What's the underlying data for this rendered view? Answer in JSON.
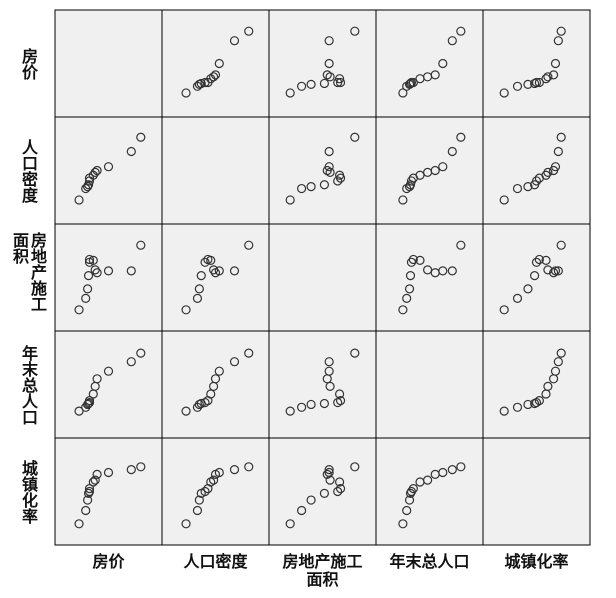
{
  "chart_data": {
    "type": "scatter-matrix",
    "xlim": [
      0,
      100
    ],
    "ylim": [
      0,
      100
    ],
    "variables": [
      {
        "name": "房价",
        "values": [
          19,
          26,
          28,
          29,
          30,
          30,
          34,
          36,
          38,
          50,
          74,
          84
        ]
      },
      {
        "name": "人口密度",
        "values": [
          19,
          31,
          33,
          35,
          39,
          42,
          45,
          48,
          50,
          54,
          70,
          85
        ]
      },
      {
        "name": "房地产施工面积",
        "values": [
          16,
          28,
          38,
          52,
          66,
          69,
          68,
          58,
          55,
          57,
          57,
          84
        ]
      },
      {
        "name": "年末总人口",
        "values": [
          22,
          26,
          29,
          30,
          31,
          33,
          40,
          48,
          56,
          64,
          74,
          83
        ]
      },
      {
        "name": "城镇化率",
        "values": [
          16,
          30,
          41,
          48,
          50,
          53,
          60,
          62,
          68,
          70,
          73,
          76
        ]
      }
    ]
  }
}
